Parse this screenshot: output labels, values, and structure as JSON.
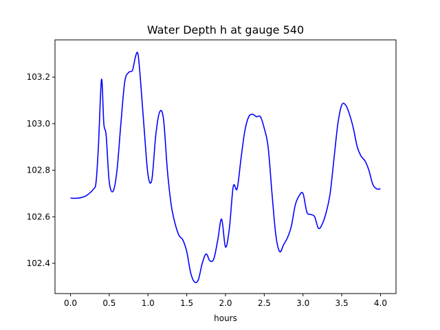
{
  "chart_data": {
    "type": "line",
    "title": "Water Depth h at gauge 540",
    "xlabel": "hours",
    "ylabel": "",
    "xlim": [
      -0.2,
      4.2
    ],
    "ylim": [
      102.27,
      103.36
    ],
    "grid": false,
    "legend": "none",
    "colors": {
      "line": "#0000ff",
      "axes": "#000000",
      "background": "#ffffff"
    },
    "xticks": [
      0.0,
      0.5,
      1.0,
      1.5,
      2.0,
      2.5,
      3.0,
      3.5,
      4.0
    ],
    "xtick_labels": [
      "0.0",
      "0.5",
      "1.0",
      "1.5",
      "2.0",
      "2.5",
      "3.0",
      "3.5",
      "4.0"
    ],
    "yticks": [
      102.4,
      102.6,
      102.8,
      103.0,
      103.2
    ],
    "ytick_labels": [
      "102.4",
      "102.6",
      "102.8",
      "103.0",
      "103.2"
    ],
    "series": [
      {
        "x": [
          0.0,
          0.1,
          0.2,
          0.3,
          0.33,
          0.36,
          0.4,
          0.43,
          0.46,
          0.5,
          0.55,
          0.6,
          0.65,
          0.7,
          0.75,
          0.8,
          0.84,
          0.87,
          0.9,
          0.95,
          1.0,
          1.05,
          1.1,
          1.15,
          1.2,
          1.25,
          1.3,
          1.35,
          1.4,
          1.45,
          1.5,
          1.55,
          1.6,
          1.65,
          1.7,
          1.75,
          1.8,
          1.85,
          1.9,
          1.95,
          2.0,
          2.05,
          2.1,
          2.15,
          2.2,
          2.25,
          2.3,
          2.35,
          2.4,
          2.45,
          2.5,
          2.55,
          2.6,
          2.65,
          2.7,
          2.75,
          2.8,
          2.85,
          2.9,
          2.95,
          3.0,
          3.05,
          3.1,
          3.15,
          3.2,
          3.25,
          3.3,
          3.35,
          3.4,
          3.45,
          3.5,
          3.55,
          3.6,
          3.65,
          3.7,
          3.75,
          3.8,
          3.85,
          3.9,
          3.95,
          4.0
        ],
        "values": [
          102.68,
          102.68,
          102.69,
          102.72,
          102.75,
          102.9,
          103.19,
          103.0,
          102.95,
          102.75,
          102.71,
          102.8,
          103.0,
          103.18,
          103.22,
          103.23,
          103.29,
          103.3,
          103.2,
          102.98,
          102.78,
          102.76,
          102.95,
          103.05,
          103.02,
          102.8,
          102.65,
          102.57,
          102.52,
          102.5,
          102.45,
          102.36,
          102.32,
          102.33,
          102.4,
          102.44,
          102.41,
          102.42,
          102.5,
          102.59,
          102.47,
          102.55,
          102.73,
          102.72,
          102.85,
          102.97,
          103.03,
          103.04,
          103.03,
          103.03,
          102.98,
          102.9,
          102.7,
          102.52,
          102.45,
          102.48,
          102.51,
          102.56,
          102.65,
          102.69,
          102.7,
          102.62,
          102.61,
          102.6,
          102.55,
          102.57,
          102.62,
          102.7,
          102.85,
          103.0,
          103.08,
          103.08,
          103.04,
          102.98,
          102.9,
          102.86,
          102.84,
          102.8,
          102.74,
          102.72,
          102.72
        ]
      }
    ]
  }
}
